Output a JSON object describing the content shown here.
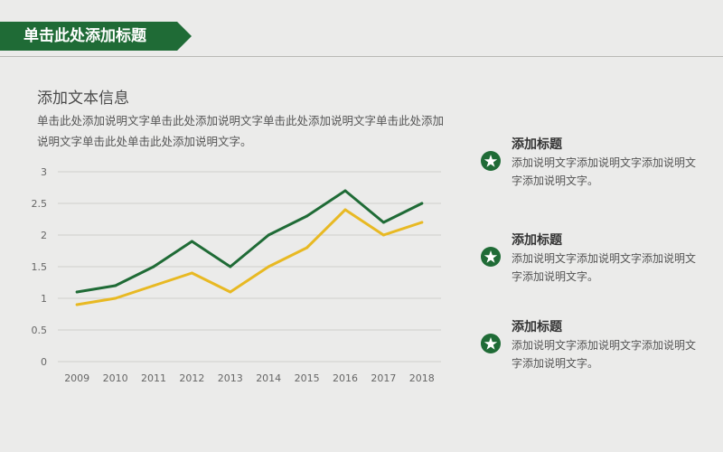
{
  "header": {
    "title": "单击此处添加标题"
  },
  "intro": {
    "heading": "添加文本信息",
    "body": "单击此处添加说明文字单击此处添加说明文字单击此处添加说明文字单击此处添加说明文字单击此处单击此处添加说明文字。"
  },
  "chart_data": {
    "type": "line",
    "title": "",
    "xlabel": "",
    "ylabel": "",
    "categories": [
      "2009",
      "2010",
      "2011",
      "2012",
      "2013",
      "2014",
      "2015",
      "2016",
      "2017",
      "2018"
    ],
    "ylim": [
      0,
      3
    ],
    "yticks": [
      "0",
      "0.5",
      "1",
      "1.5",
      "2",
      "2.5",
      "3"
    ],
    "grid": true,
    "legend": "none",
    "series": [
      {
        "color": "#1f6b36",
        "values": [
          1.1,
          1.2,
          1.5,
          1.9,
          1.5,
          2.0,
          2.3,
          2.7,
          2.2,
          2.5
        ]
      },
      {
        "color": "#e8b923",
        "values": [
          0.9,
          1.0,
          1.2,
          1.4,
          1.1,
          1.5,
          1.8,
          2.4,
          2.0,
          2.2
        ]
      }
    ]
  },
  "features": [
    {
      "icon": "star-icon",
      "title": "添加标题",
      "desc": "添加说明文字添加说明文字添加说明文字添加说明文字。"
    },
    {
      "icon": "star-icon",
      "title": "添加标题",
      "desc": "添加说明文字添加说明文字添加说明文字添加说明文字。"
    },
    {
      "icon": "star-icon",
      "title": "添加标题",
      "desc": "添加说明文字添加说明文字添加说明文字添加说明文字。"
    }
  ],
  "colors": {
    "accent": "#1f6b36",
    "secondary": "#e8b923",
    "background": "#ebebea"
  }
}
